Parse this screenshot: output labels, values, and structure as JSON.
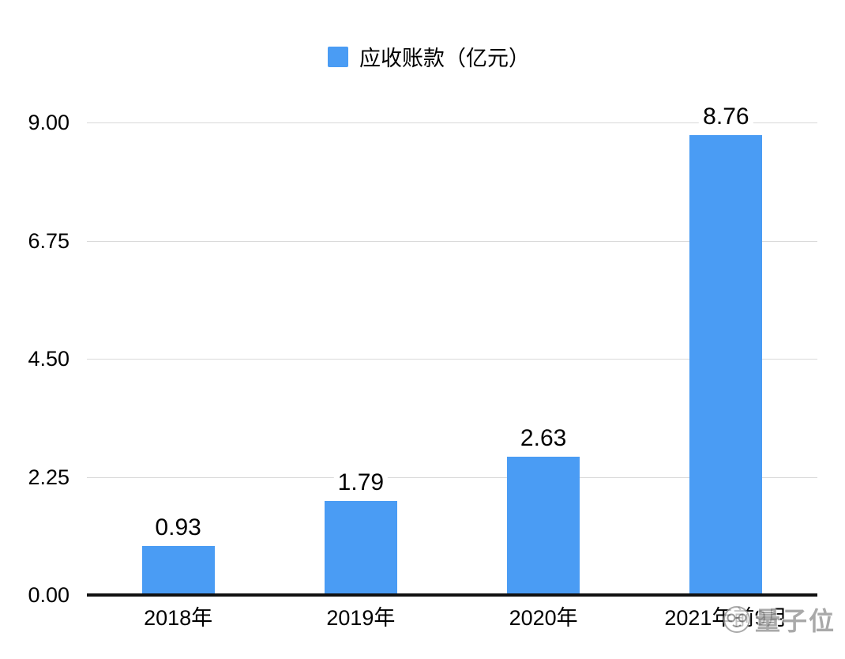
{
  "chart_data": {
    "type": "bar",
    "title": "",
    "legend": {
      "label": "应收账款（亿元）",
      "position": "top"
    },
    "categories": [
      "2018年",
      "2019年",
      "2020年",
      "2021年前9月"
    ],
    "values": [
      0.93,
      1.79,
      2.63,
      8.76
    ],
    "value_labels": [
      "0.93",
      "1.79",
      "2.63",
      "8.76"
    ],
    "xlabel": "",
    "ylabel": "",
    "ylim": [
      0,
      9
    ],
    "yticks": [
      0,
      2.25,
      4.5,
      6.75,
      9
    ],
    "ytick_labels": [
      "0.00",
      "2.25",
      "4.50",
      "6.75",
      "9.00"
    ],
    "grid": "horizontal",
    "colors": {
      "bar": "#4A9CF4",
      "gridline": "#D9D9D9",
      "axis": "#111111",
      "text": "#000000"
    }
  },
  "watermark": {
    "text": "量子位"
  }
}
